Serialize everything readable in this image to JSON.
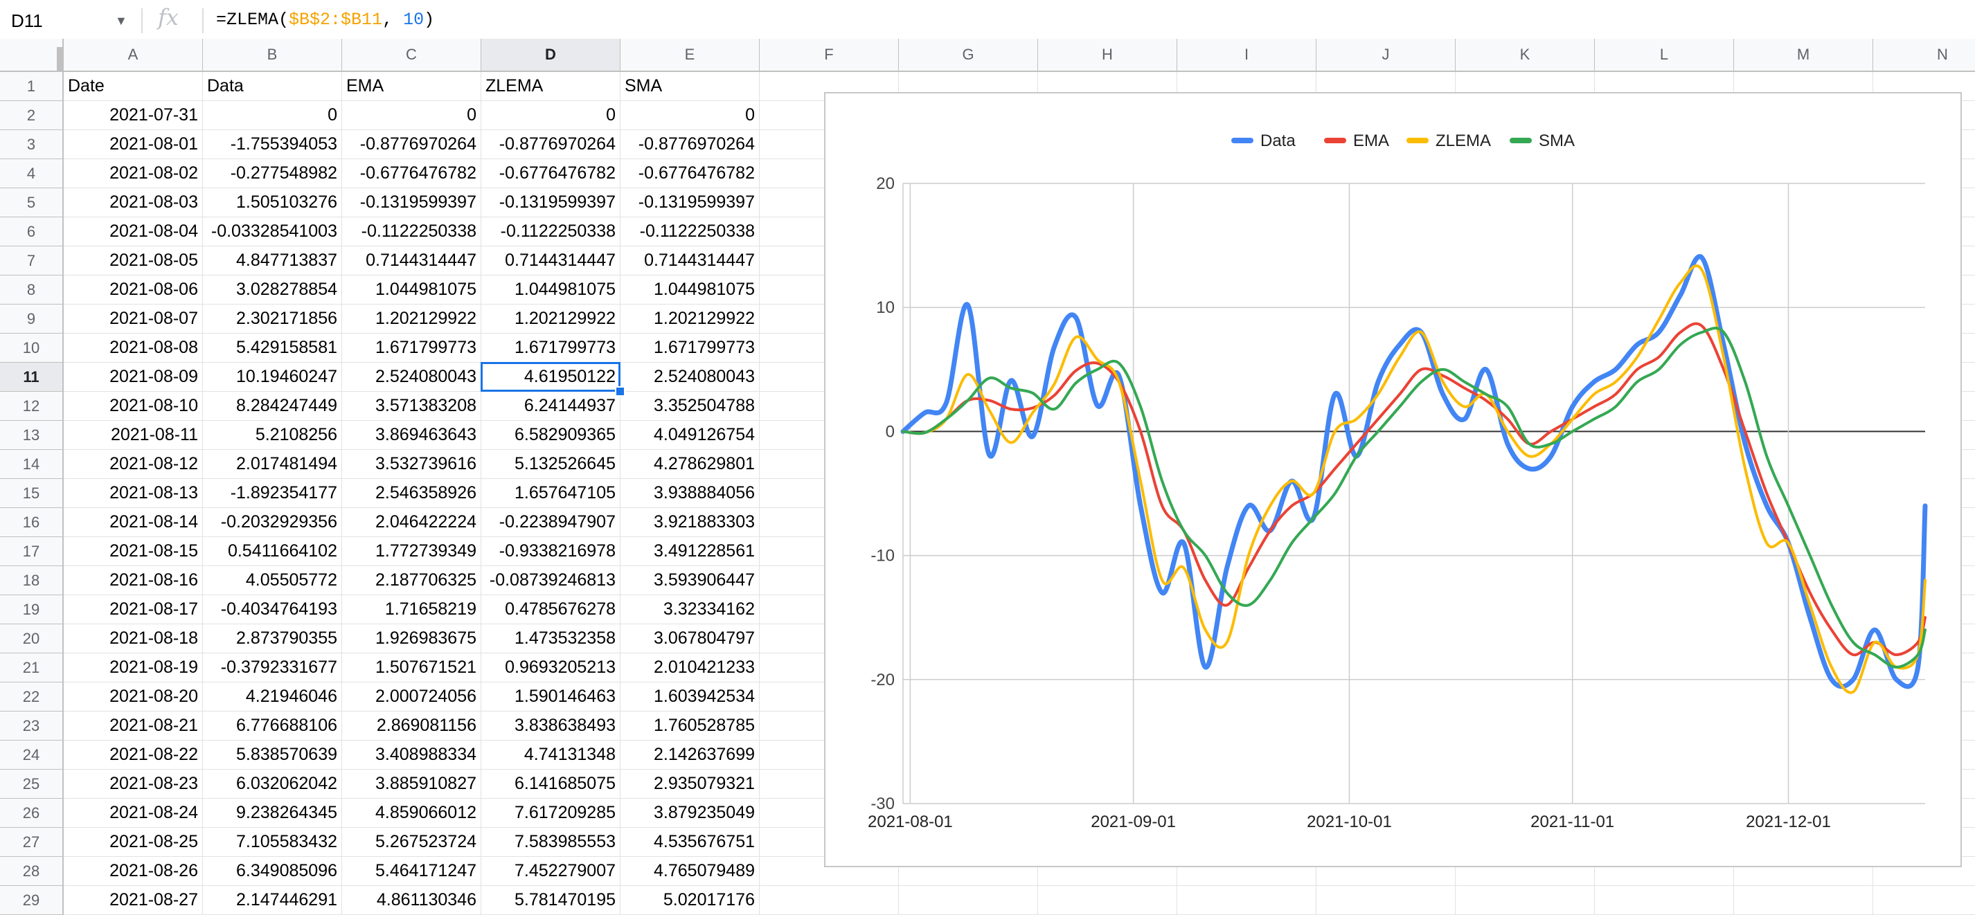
{
  "formula_bar": {
    "cell_ref": "D11",
    "fx_label": "fx",
    "formula_prefix": "=ZLEMA(",
    "formula_range": "$B$2:$B11",
    "formula_sep": ", ",
    "formula_num": "10",
    "formula_suffix": ")"
  },
  "columns": [
    "A",
    "B",
    "C",
    "D",
    "E",
    "F",
    "G",
    "H",
    "I",
    "J",
    "K",
    "L",
    "M",
    "N"
  ],
  "selected_cell": {
    "col": "D",
    "row": 11
  },
  "rows": [
    [
      "Date",
      "Data",
      "EMA",
      "ZLEMA",
      "SMA"
    ],
    [
      "2021-07-31",
      "0",
      "0",
      "0",
      "0"
    ],
    [
      "2021-08-01",
      "-1.755394053",
      "-0.8776970264",
      "-0.8776970264",
      "-0.8776970264"
    ],
    [
      "2021-08-02",
      "-0.277548982",
      "-0.6776476782",
      "-0.6776476782",
      "-0.6776476782"
    ],
    [
      "2021-08-03",
      "1.505103276",
      "-0.1319599397",
      "-0.1319599397",
      "-0.1319599397"
    ],
    [
      "2021-08-04",
      "-0.03328541003",
      "-0.1122250338",
      "-0.1122250338",
      "-0.1122250338"
    ],
    [
      "2021-08-05",
      "4.847713837",
      "0.7144314447",
      "0.7144314447",
      "0.7144314447"
    ],
    [
      "2021-08-06",
      "3.028278854",
      "1.044981075",
      "1.044981075",
      "1.044981075"
    ],
    [
      "2021-08-07",
      "2.302171856",
      "1.202129922",
      "1.202129922",
      "1.202129922"
    ],
    [
      "2021-08-08",
      "5.429158581",
      "1.671799773",
      "1.671799773",
      "1.671799773"
    ],
    [
      "2021-08-09",
      "10.19460247",
      "2.524080043",
      "4.61950122",
      "2.524080043"
    ],
    [
      "2021-08-10",
      "8.284247449",
      "3.571383208",
      "6.24144937",
      "3.352504788"
    ],
    [
      "2021-08-11",
      "5.2108256",
      "3.869463643",
      "6.582909365",
      "4.049126754"
    ],
    [
      "2021-08-12",
      "2.017481494",
      "3.532739616",
      "5.132526645",
      "4.278629801"
    ],
    [
      "2021-08-13",
      "-1.892354177",
      "2.546358926",
      "1.657647105",
      "3.938884056"
    ],
    [
      "2021-08-14",
      "-0.2032929356",
      "2.046422224",
      "-0.2238947907",
      "3.921883303"
    ],
    [
      "2021-08-15",
      "0.5411664102",
      "1.772739349",
      "-0.9338216978",
      "3.491228561"
    ],
    [
      "2021-08-16",
      "4.05505772",
      "2.187706325",
      "-0.08739246813",
      "3.593906447"
    ],
    [
      "2021-08-17",
      "-0.4034764193",
      "1.7165821 9",
      "0.4785676278",
      "3.32334162"
    ],
    [
      "2021-08-18",
      "2.873790355",
      "1.926983675",
      "1.473532358",
      "3.067804797"
    ],
    [
      "2021-08-19",
      "-0.3792331677",
      "1.507671521",
      "0.9693205213",
      "2.010421233"
    ],
    [
      "2021-08-20",
      "4.21946046",
      "2.000724056",
      "1.590146463",
      "1.603942534"
    ],
    [
      "2021-08-21",
      "6.776688106",
      "2.869081156",
      "3.838638493",
      "1.760528785"
    ],
    [
      "2021-08-22",
      "5.838570639",
      "3.408988334",
      "4.74131348",
      "2.142637699"
    ],
    [
      "2021-08-23",
      "6.032062042",
      "3.885910827",
      "6.141685075",
      "2.935079321"
    ],
    [
      "2021-08-24",
      "9.238264345",
      "4.859066012",
      "7.617209285",
      "3.879235049"
    ],
    [
      "2021-08-25",
      "7.105583432",
      "5.267523724",
      "7.583985553",
      "4.535676751"
    ],
    [
      "2021-08-26",
      "6.349085096",
      "5.464171247",
      "7.452279007",
      "4.765079489"
    ],
    [
      "2021-08-27",
      "2.147446291",
      "4.861130346",
      "5.781470195",
      "5.02017176"
    ]
  ],
  "chart_data": {
    "type": "line",
    "title": "",
    "xlabel": "",
    "ylabel": "",
    "ylim": [
      -30,
      20
    ],
    "yticks": [
      "20",
      "10",
      "0",
      "-10",
      "-20",
      "-30"
    ],
    "xticks": [
      "2021-08-01",
      "2021-09-01",
      "2021-10-01",
      "2021-11-01",
      "2021-12-01"
    ],
    "x_range": [
      "2021-07-31",
      "2021-12-20"
    ],
    "legend_position": "top",
    "grid": true,
    "x": [
      "2021-07-31",
      "2021-08-03",
      "2021-08-06",
      "2021-08-09",
      "2021-08-12",
      "2021-08-15",
      "2021-08-18",
      "2021-08-21",
      "2021-08-24",
      "2021-08-27",
      "2021-08-30",
      "2021-09-02",
      "2021-09-05",
      "2021-09-08",
      "2021-09-11",
      "2021-09-14",
      "2021-09-17",
      "2021-09-20",
      "2021-09-23",
      "2021-09-26",
      "2021-09-29",
      "2021-10-02",
      "2021-10-05",
      "2021-10-08",
      "2021-10-11",
      "2021-10-14",
      "2021-10-17",
      "2021-10-20",
      "2021-10-23",
      "2021-10-26",
      "2021-10-29",
      "2021-11-01",
      "2021-11-04",
      "2021-11-07",
      "2021-11-10",
      "2021-11-13",
      "2021-11-16",
      "2021-11-19",
      "2021-11-22",
      "2021-11-25",
      "2021-11-28",
      "2021-12-01",
      "2021-12-04",
      "2021-12-07",
      "2021-12-10",
      "2021-12-13",
      "2021-12-16",
      "2021-12-19",
      "2021-12-20"
    ],
    "series": [
      {
        "name": "Data",
        "color": "#4285f4",
        "width": 7,
        "values": [
          0,
          1.5,
          2.3,
          10.2,
          -1.9,
          4.1,
          -0.4,
          6.8,
          9.2,
          2.1,
          4.5,
          -6,
          -13,
          -9,
          -19,
          -11,
          -6,
          -8,
          -4,
          -7,
          3,
          -2,
          4,
          7,
          8,
          3,
          1,
          5,
          -1,
          -3,
          -2,
          2,
          4,
          5,
          7,
          8,
          11,
          14,
          7,
          -1,
          -6,
          -9,
          -15,
          -20,
          -20,
          -16,
          -20,
          -19,
          -6
        ]
      },
      {
        "name": "EMA",
        "color": "#ea4335",
        "width": 4,
        "values": [
          0,
          -0.1,
          1,
          2.5,
          2.5,
          1.8,
          1.9,
          2.9,
          4.9,
          5.5,
          4,
          0,
          -6,
          -8,
          -12,
          -14,
          -11,
          -8,
          -6,
          -5,
          -3,
          -1,
          1,
          3,
          5,
          4.5,
          3.5,
          2.5,
          1,
          -1,
          0,
          1,
          2,
          3,
          5,
          6,
          8,
          8.5,
          5,
          0,
          -5,
          -9,
          -13,
          -16,
          -18,
          -17,
          -18,
          -17,
          -15
        ]
      },
      {
        "name": "ZLEMA",
        "color": "#fbbc04",
        "width": 4,
        "values": [
          0,
          -0.1,
          1,
          4.6,
          1.7,
          -0.9,
          1.5,
          3.8,
          7.6,
          5.8,
          4,
          -4,
          -12,
          -11,
          -16,
          -17,
          -10,
          -6,
          -4,
          -5,
          0,
          1,
          3,
          6,
          8,
          4,
          2,
          3,
          0,
          -2,
          -1,
          1,
          3,
          4,
          6,
          9,
          12,
          13,
          6,
          -3,
          -9,
          -9,
          -14,
          -19,
          -21,
          -17,
          -19,
          -18,
          -12
        ]
      },
      {
        "name": "SMA",
        "color": "#34a853",
        "width": 4,
        "values": [
          0,
          -0.1,
          1,
          2.5,
          4.3,
          3.5,
          3.1,
          1.8,
          3.9,
          5.0,
          5.5,
          2,
          -4,
          -8,
          -10,
          -13,
          -14,
          -12,
          -9,
          -7,
          -5,
          -2,
          0,
          2,
          4,
          5,
          4,
          3,
          2,
          -1,
          -1,
          0,
          1,
          2,
          4,
          5,
          7,
          8,
          8,
          4,
          -2,
          -6,
          -10,
          -14,
          -17,
          -18,
          -19,
          -18,
          -16
        ]
      }
    ]
  }
}
